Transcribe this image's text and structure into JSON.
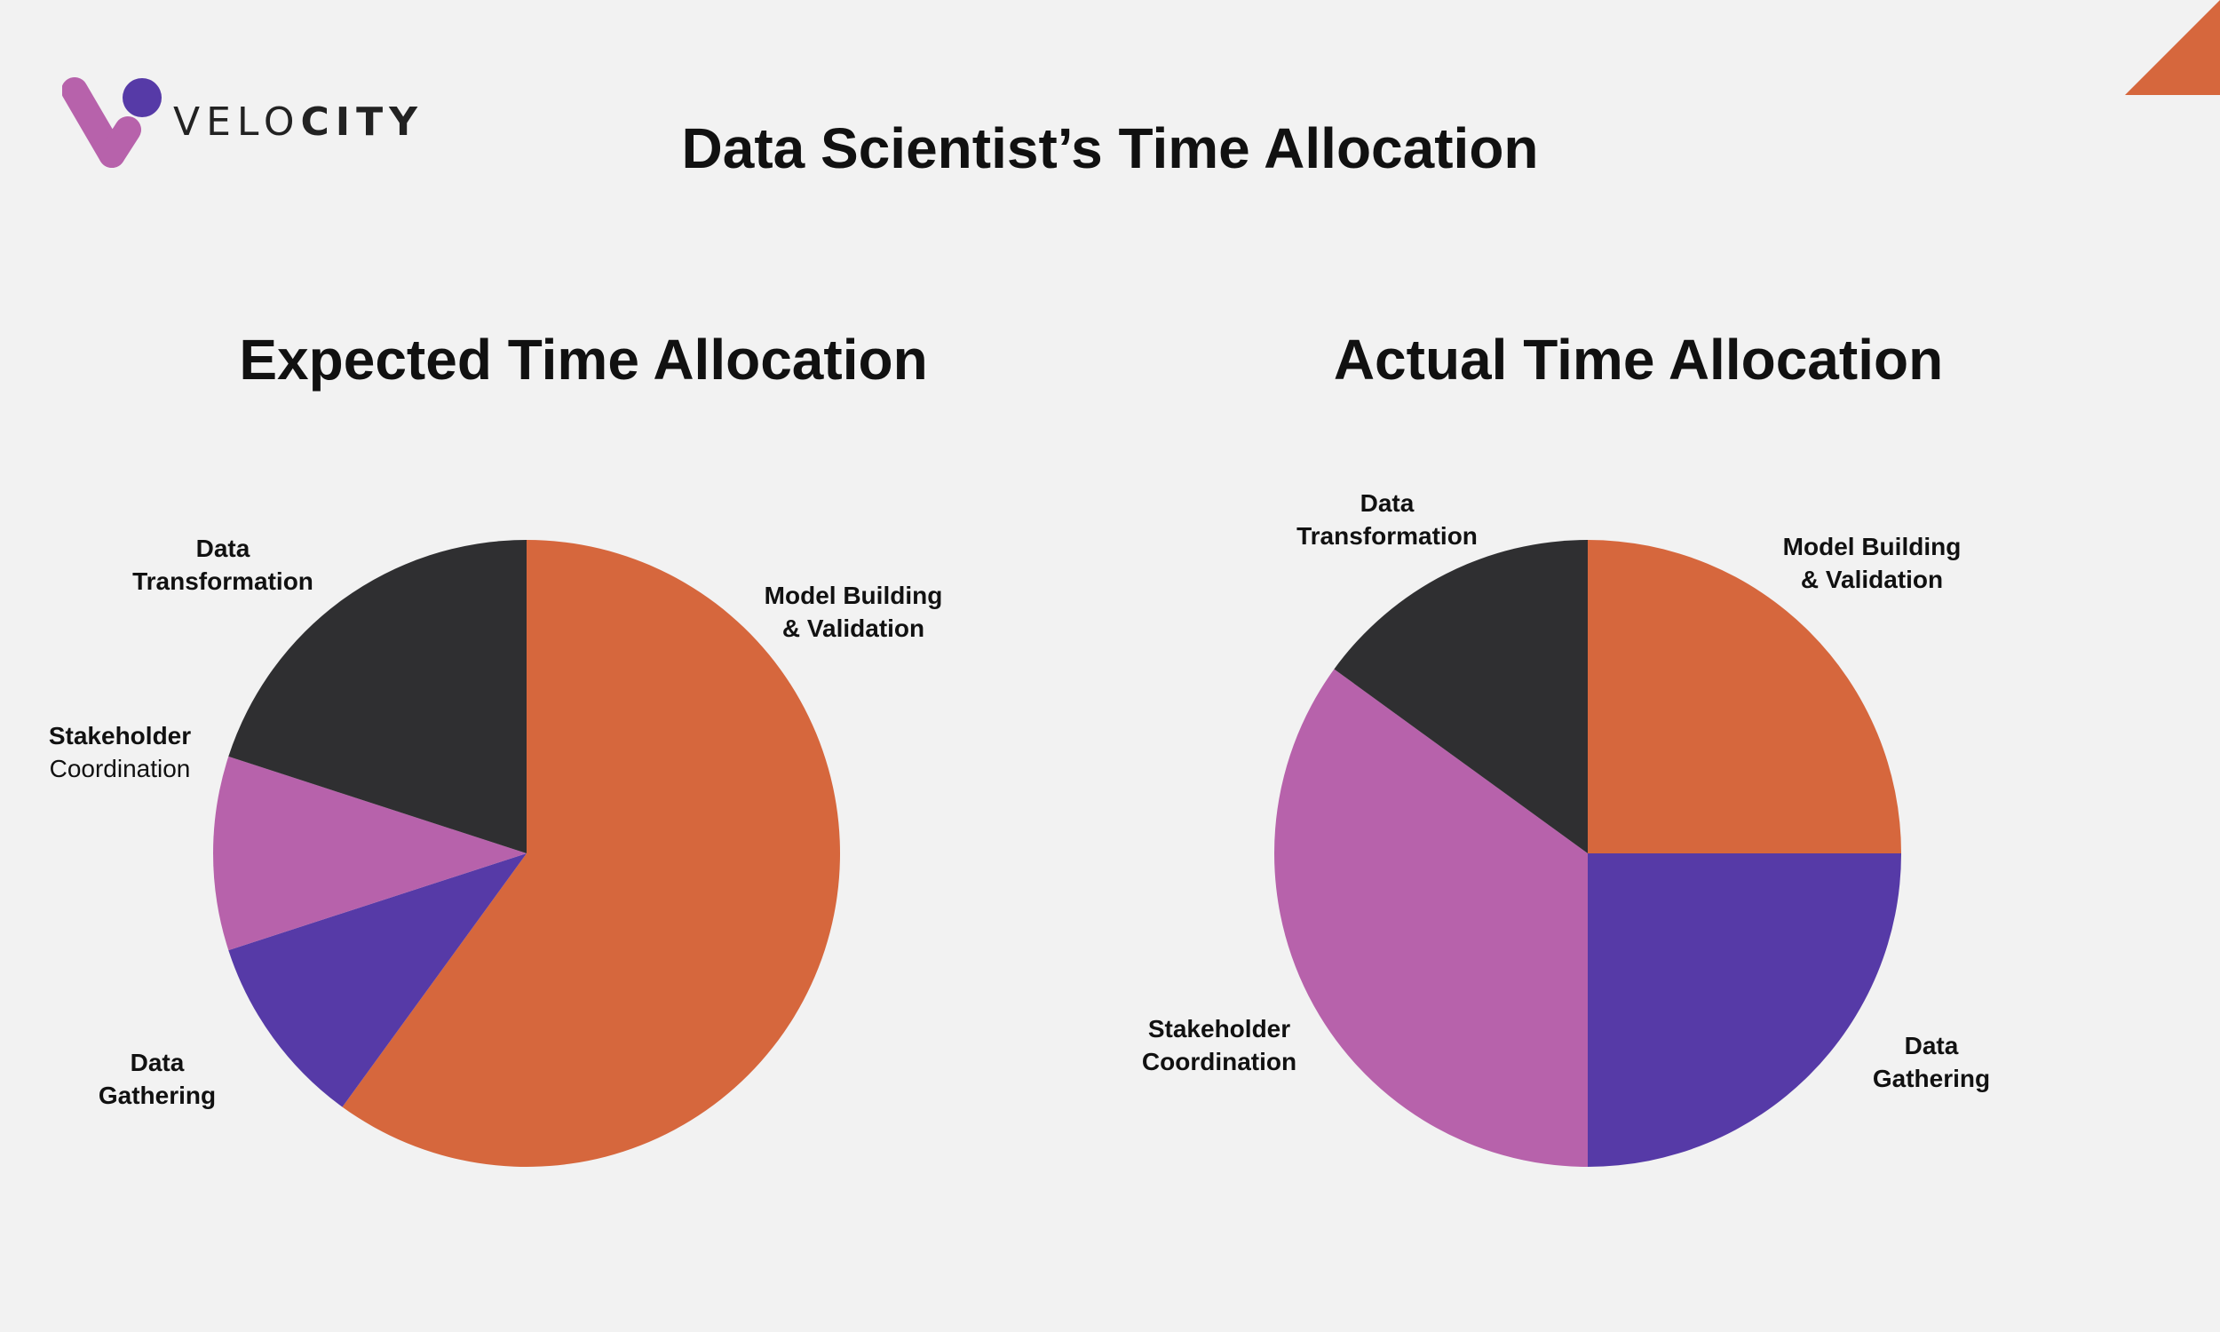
{
  "brand": {
    "logo_text_light": "VELO",
    "logo_text_bold": "CITY",
    "colors": {
      "pink": "#b762ab",
      "purple": "#563aa7",
      "orange": "#d6673d"
    }
  },
  "title": "Data Scientist’s Time Allocation",
  "chart_data": [
    {
      "type": "pie",
      "title": "Expected Time Allocation",
      "slices": [
        {
          "name": "Model Building & Validation",
          "label_lines": [
            "Model Building",
            "& Validation"
          ],
          "value": 60,
          "color": "#d6673d"
        },
        {
          "name": "Data Gathering",
          "label_lines": [
            "Data",
            "Gathering"
          ],
          "value": 10,
          "color": "#563aa7"
        },
        {
          "name": "Stakeholder Coordination",
          "label_lines": [
            "Stakeholder",
            "Coordination"
          ],
          "value": 10,
          "color": "#b762ab"
        },
        {
          "name": "Data Transformation",
          "label_lines": [
            "Data",
            "Transformation"
          ],
          "value": 20,
          "color": "#2f2f31"
        }
      ]
    },
    {
      "type": "pie",
      "title": "Actual Time Allocation",
      "slices": [
        {
          "name": "Model Building & Validation",
          "label_lines": [
            "Model Building",
            "& Validation"
          ],
          "value": 25,
          "color": "#d6673d"
        },
        {
          "name": "Data Gathering",
          "label_lines": [
            "Data",
            "Gathering"
          ],
          "value": 25,
          "color": "#563aa7"
        },
        {
          "name": "Stakeholder Coordination",
          "label_lines": [
            "Stakeholder",
            "Coordination"
          ],
          "value": 35,
          "color": "#b762ab"
        },
        {
          "name": "Data Transformation",
          "label_lines": [
            "Data",
            "Transformation"
          ],
          "value": 15,
          "color": "#2f2f31"
        }
      ]
    }
  ]
}
